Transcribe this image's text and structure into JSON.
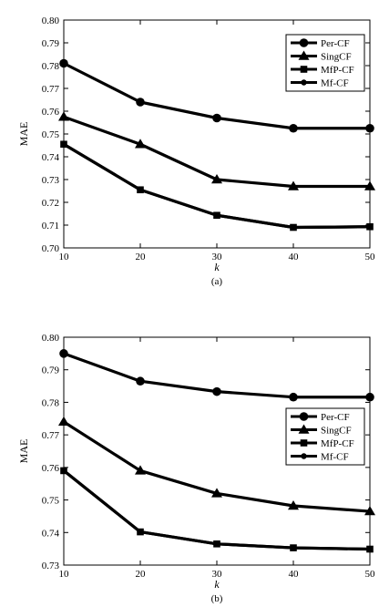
{
  "chart_data": [
    {
      "type": "line",
      "caption": "(a)",
      "xlabel": "k",
      "ylabel": "MAE",
      "x": [
        10,
        20,
        30,
        40,
        50
      ],
      "xlim": [
        10,
        50
      ],
      "ylim": [
        0.7,
        0.8
      ],
      "xticks": [
        "10",
        "20",
        "30",
        "40",
        "50"
      ],
      "yticks": [
        "0.70",
        "0.71",
        "0.72",
        "0.73",
        "0.74",
        "0.75",
        "0.76",
        "0.77",
        "0.78",
        "0.79",
        "0.80"
      ],
      "legend_position": "top-right",
      "grid": false,
      "series": [
        {
          "name": "Per-CF",
          "marker": "circle",
          "values": [
            0.781,
            0.764,
            0.757,
            0.7525,
            0.7525
          ]
        },
        {
          "name": "SingCF",
          "marker": "triangle",
          "values": [
            0.7575,
            0.7455,
            0.73,
            0.727,
            0.727
          ]
        },
        {
          "name": "MfP-CF",
          "marker": "square",
          "values": [
            0.7455,
            0.7255,
            0.7143,
            0.709,
            0.7093
          ]
        },
        {
          "name": "Mf-CF",
          "marker": "small-circle",
          "values": [
            0.7455,
            0.7255,
            0.7143,
            0.709,
            0.7093
          ]
        }
      ]
    },
    {
      "type": "line",
      "caption": "(b)",
      "xlabel": "k",
      "ylabel": "MAE",
      "x": [
        10,
        20,
        30,
        40,
        50
      ],
      "xlim": [
        10,
        50
      ],
      "ylim": [
        0.73,
        0.8
      ],
      "xticks": [
        "10",
        "20",
        "30",
        "40",
        "50"
      ],
      "yticks": [
        "0.73",
        "0.74",
        "0.75",
        "0.76",
        "0.77",
        "0.78",
        "0.79",
        "0.80"
      ],
      "legend_position": "center-right",
      "grid": false,
      "series": [
        {
          "name": "Per-CF",
          "marker": "circle",
          "values": [
            0.795,
            0.7865,
            0.7833,
            0.7816,
            0.7816
          ]
        },
        {
          "name": "SingCF",
          "marker": "triangle",
          "values": [
            0.774,
            0.759,
            0.752,
            0.7482,
            0.7465
          ]
        },
        {
          "name": "MfP-CF",
          "marker": "square",
          "values": [
            0.759,
            0.7402,
            0.7365,
            0.7353,
            0.7349
          ]
        },
        {
          "name": "Mf-CF",
          "marker": "small-circle",
          "values": [
            0.759,
            0.7402,
            0.7365,
            0.7353,
            0.7349
          ]
        }
      ]
    }
  ]
}
